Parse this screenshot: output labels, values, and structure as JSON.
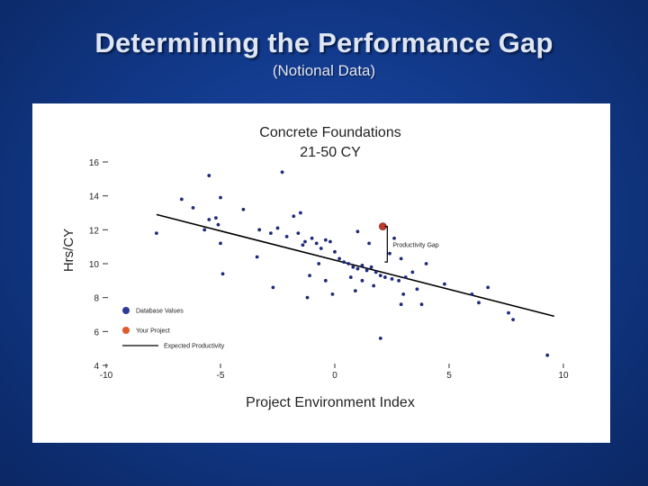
{
  "slide": {
    "title": "Determining the Performance Gap",
    "subtitle": "(Notional Data)"
  },
  "colors": {
    "background": "#123a8c",
    "database_point": "#1f2a7a",
    "project_point": "#c0392b",
    "line": "#000000"
  },
  "chart_data": {
    "type": "scatter",
    "title": "Concrete Foundations",
    "subtitle": "21-50 CY",
    "xlabel": "Project Environment Index",
    "ylabel": "Hrs/CY",
    "xlim": [
      -10,
      10
    ],
    "ylim": [
      4,
      16
    ],
    "xticks": [
      -10,
      -5,
      0,
      5,
      10
    ],
    "yticks": [
      4,
      6,
      8,
      10,
      12,
      14,
      16
    ],
    "grid": false,
    "legend": {
      "placement": "lower-left",
      "items": [
        {
          "label": "Database Values",
          "marker": "blue-dot"
        },
        {
          "label": "Your Project",
          "marker": "red-dot"
        },
        {
          "label": "Expected Productivity",
          "marker": "line"
        }
      ]
    },
    "series": [
      {
        "name": "Database Values",
        "points": [
          [
            -7.8,
            11.8
          ],
          [
            -6.7,
            13.8
          ],
          [
            -6.2,
            13.3
          ],
          [
            -5.5,
            15.2
          ],
          [
            -5.0,
            13.9
          ],
          [
            -5.7,
            12.0
          ],
          [
            -5.5,
            12.6
          ],
          [
            -5.2,
            12.7
          ],
          [
            -5.1,
            12.3
          ],
          [
            -5.0,
            11.2
          ],
          [
            -4.9,
            9.4
          ],
          [
            -4.0,
            13.2
          ],
          [
            -3.4,
            10.4
          ],
          [
            -3.3,
            12.0
          ],
          [
            -2.8,
            11.8
          ],
          [
            -2.3,
            15.4
          ],
          [
            -2.5,
            12.1
          ],
          [
            -2.1,
            11.6
          ],
          [
            -1.8,
            12.8
          ],
          [
            -1.5,
            13.0
          ],
          [
            -1.6,
            11.8
          ],
          [
            -1.4,
            11.1
          ],
          [
            -1.3,
            11.3
          ],
          [
            -1.0,
            11.5
          ],
          [
            -0.8,
            11.2
          ],
          [
            -0.4,
            11.4
          ],
          [
            -0.2,
            11.3
          ],
          [
            -0.6,
            10.9
          ],
          [
            0.0,
            10.7
          ],
          [
            0.2,
            10.3
          ],
          [
            0.4,
            10.1
          ],
          [
            0.6,
            10.0
          ],
          [
            0.8,
            9.8
          ],
          [
            1.0,
            9.7
          ],
          [
            1.2,
            9.9
          ],
          [
            1.4,
            9.6
          ],
          [
            1.6,
            9.8
          ],
          [
            1.8,
            9.5
          ],
          [
            2.0,
            9.3
          ],
          [
            2.2,
            9.2
          ],
          [
            2.5,
            9.1
          ],
          [
            2.8,
            9.0
          ],
          [
            3.1,
            9.2
          ],
          [
            3.4,
            9.5
          ],
          [
            2.9,
            10.3
          ],
          [
            1.0,
            11.9
          ],
          [
            1.5,
            11.2
          ],
          [
            2.4,
            10.6
          ],
          [
            1.2,
            9.0
          ],
          [
            0.7,
            9.2
          ],
          [
            -0.7,
            10.0
          ],
          [
            -1.1,
            9.3
          ],
          [
            -0.4,
            9.0
          ],
          [
            0.9,
            8.4
          ],
          [
            -0.1,
            8.2
          ],
          [
            -1.2,
            8.0
          ],
          [
            -2.7,
            8.6
          ],
          [
            1.7,
            8.7
          ],
          [
            3.0,
            8.2
          ],
          [
            3.6,
            8.5
          ],
          [
            4.8,
            8.8
          ],
          [
            6.0,
            8.2
          ],
          [
            6.7,
            8.6
          ],
          [
            6.3,
            7.7
          ],
          [
            2.9,
            7.6
          ],
          [
            3.8,
            7.6
          ],
          [
            2.0,
            5.6
          ],
          [
            7.6,
            7.1
          ],
          [
            7.8,
            6.7
          ],
          [
            9.3,
            4.6
          ],
          [
            4.0,
            10.0
          ],
          [
            2.6,
            11.5
          ]
        ]
      },
      {
        "name": "Your Project",
        "points": [
          [
            2.1,
            12.2
          ]
        ]
      }
    ],
    "expected_line": {
      "x": [
        -7.8,
        9.6
      ],
      "y": [
        12.9,
        6.9
      ]
    },
    "annotation": {
      "text": "Productivity Gap",
      "x": 2.1,
      "y_from": 10.1,
      "y_to": 12.2
    }
  }
}
